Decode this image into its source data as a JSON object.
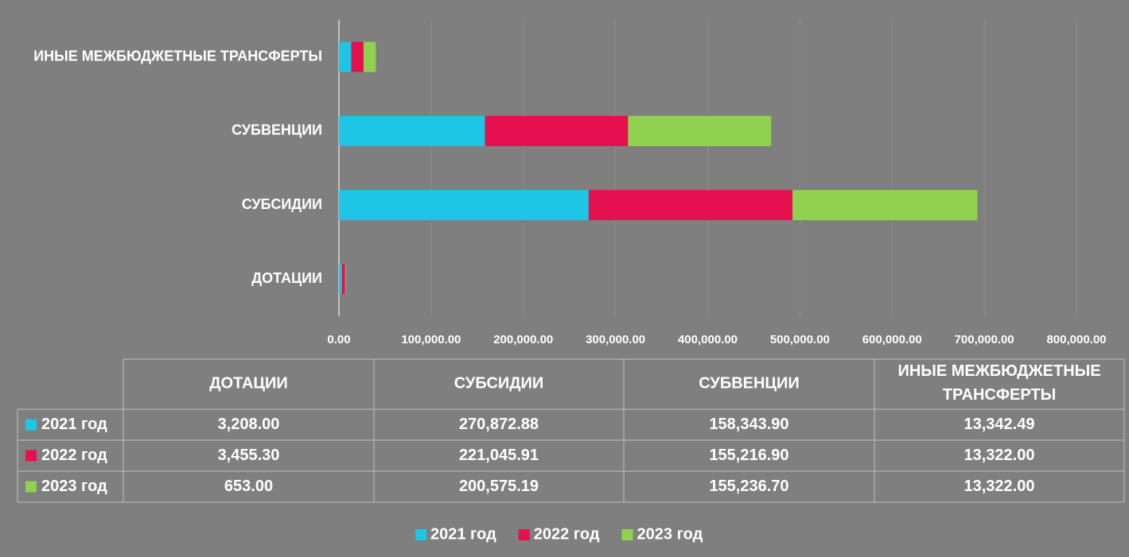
{
  "chart_data": {
    "type": "stacked_bar_horizontal",
    "categories": [
      "ДОТАЦИИ",
      "СУБСИДИИ",
      "СУБВЕНЦИИ",
      "ИНЫЕ МЕЖБЮДЖЕТНЫЕ ТРАНСФЕРТЫ"
    ],
    "series": [
      {
        "name": "2021 год",
        "color": "#1cc6e4",
        "values": [
          3208.0,
          270872.88,
          158343.9,
          13342.49
        ],
        "value_labels": [
          "3,208.00",
          "270,872.88",
          "158,343.90",
          "13,342.49"
        ]
      },
      {
        "name": "2022 год",
        "color": "#e5104f",
        "values": [
          3455.3,
          221045.91,
          155216.9,
          13322.0
        ],
        "value_labels": [
          "3,455.30",
          "221,045.91",
          "155,216.90",
          "13,322.00"
        ]
      },
      {
        "name": "2023 год",
        "color": "#90d150",
        "values": [
          653.0,
          200575.19,
          155236.7,
          13322.0
        ],
        "value_labels": [
          "653.00",
          "200,575.19",
          "155,236.70",
          "13,322.00"
        ]
      }
    ],
    "xlim": [
      0,
      800000
    ],
    "xticks": [
      {
        "value": 0,
        "label": "0.00"
      },
      {
        "value": 100000,
        "label": "100,000.00"
      },
      {
        "value": 200000,
        "label": "200,000.00"
      },
      {
        "value": 300000,
        "label": "300,000.00"
      },
      {
        "value": 400000,
        "label": "400,000.00"
      },
      {
        "value": 500000,
        "label": "500,000.00"
      },
      {
        "value": 600000,
        "label": "600,000.00"
      },
      {
        "value": 700000,
        "label": "700,000.00"
      },
      {
        "value": 800000,
        "label": "800,000.00"
      }
    ],
    "grid": true,
    "legend": "bottom"
  }
}
